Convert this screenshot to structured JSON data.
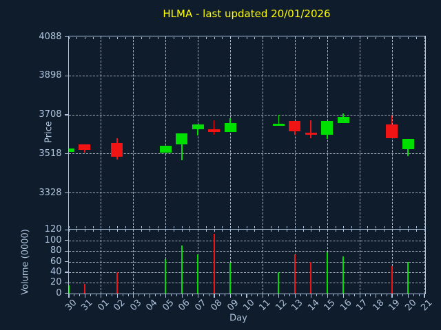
{
  "chart_data": {
    "type": "candlestick_with_volume",
    "title": "HLMA - last updated 20/01/2026",
    "title_color": "#ffff00",
    "xlabel": "Day",
    "price_axis": {
      "label": "Price",
      "ticks": [
        4088,
        3898,
        3708,
        3518,
        3328
      ],
      "ylim": [
        3156,
        4088
      ],
      "grid": true
    },
    "volume_axis": {
      "label": "Volume (0000)",
      "ticks": [
        120,
        100,
        80,
        60,
        40,
        20,
        0
      ],
      "ylim": [
        0,
        121
      ],
      "grid": true
    },
    "x_labels": [
      "30",
      "31",
      "01",
      "02",
      "03",
      "04",
      "05",
      "06",
      "07",
      "08",
      "09",
      "10",
      "11",
      "12",
      "13",
      "14",
      "15",
      "16",
      "17",
      "18",
      "19",
      "20",
      "21"
    ],
    "x_grid_at_labels": [
      "01",
      "03",
      "05",
      "07",
      "09",
      "11",
      "13",
      "15",
      "17",
      "19",
      "21"
    ],
    "colors": {
      "up": "#00e000",
      "down": "#f01414",
      "background": "#0e1c2b",
      "axis": "#b0c4de",
      "grid": "#c4ced8"
    },
    "candles": [
      {
        "day": "30",
        "open": 3525,
        "high": 3544,
        "low": 3525,
        "close": 3544,
        "volume": 15
      },
      {
        "day": "31",
        "open": 3561,
        "high": 3561,
        "low": 3522,
        "close": 3536,
        "volume": 18
      },
      {
        "day": "02",
        "open": 3568,
        "high": 3592,
        "low": 3488,
        "close": 3502,
        "volume": 40
      },
      {
        "day": "05",
        "open": 3522,
        "high": 3555,
        "low": 3522,
        "close": 3555,
        "volume": 64
      },
      {
        "day": "06",
        "open": 3561,
        "high": 3616,
        "low": 3486,
        "close": 3616,
        "volume": 91
      },
      {
        "day": "07",
        "open": 3636,
        "high": 3658,
        "low": 3605,
        "close": 3658,
        "volume": 74
      },
      {
        "day": "08",
        "open": 3636,
        "high": 3680,
        "low": 3610,
        "close": 3622,
        "volume": 113
      },
      {
        "day": "09",
        "open": 3622,
        "high": 3690,
        "low": 3622,
        "close": 3668,
        "volume": 58
      },
      {
        "day": "12",
        "open": 3653,
        "high": 3705,
        "low": 3653,
        "close": 3662,
        "volume": 40
      },
      {
        "day": "13",
        "open": 3678,
        "high": 3678,
        "low": 3611,
        "close": 3625,
        "volume": 74
      },
      {
        "day": "14",
        "open": 3620,
        "high": 3680,
        "low": 3594,
        "close": 3610,
        "volume": 59
      },
      {
        "day": "15",
        "open": 3611,
        "high": 3678,
        "low": 3591,
        "close": 3678,
        "volume": 77
      },
      {
        "day": "16",
        "open": 3665,
        "high": 3713,
        "low": 3665,
        "close": 3695,
        "volume": 70
      },
      {
        "day": "19",
        "open": 3661,
        "high": 3703,
        "low": 3594,
        "close": 3594,
        "volume": 52
      },
      {
        "day": "20",
        "open": 3538,
        "high": 3589,
        "low": 3505,
        "close": 3589,
        "volume": 60
      }
    ]
  }
}
